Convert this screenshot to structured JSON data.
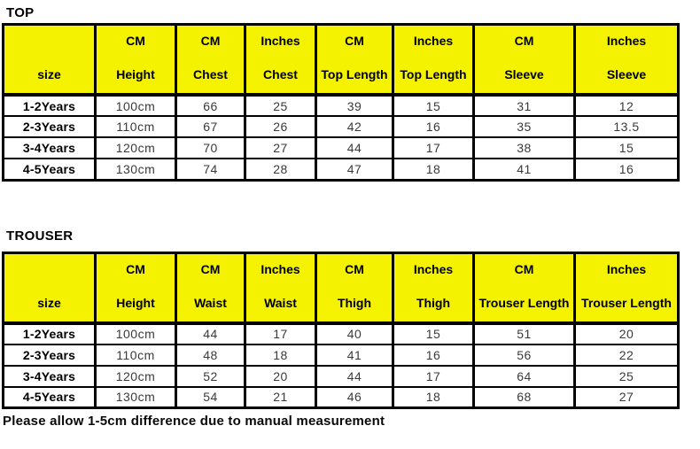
{
  "colors": {
    "header_bg": "#F5F200",
    "border": "#000000",
    "data_text": "#3a3a3a",
    "header_text": "#000000",
    "page_bg": "#ffffff"
  },
  "footnote": "Please allow 1-5cm difference due to manual measurement",
  "chart_data": [
    {
      "type": "table",
      "title": "TOP",
      "columns": [
        {
          "unit": "",
          "label": "size"
        },
        {
          "unit": "CM",
          "label": "Height"
        },
        {
          "unit": "CM",
          "label": "Chest"
        },
        {
          "unit": "Inches",
          "label": "Chest"
        },
        {
          "unit": "CM",
          "label": "Top Length"
        },
        {
          "unit": "Inches",
          "label": "Top Length"
        },
        {
          "unit": "CM",
          "label": "Sleeve"
        },
        {
          "unit": "Inches",
          "label": "Sleeve"
        }
      ],
      "rows": [
        [
          "1-2Years",
          "100cm",
          "66",
          "25",
          "39",
          "15",
          "31",
          "12"
        ],
        [
          "2-3Years",
          "110cm",
          "67",
          "26",
          "42",
          "16",
          "35",
          "13.5"
        ],
        [
          "3-4Years",
          "120cm",
          "70",
          "27",
          "44",
          "17",
          "38",
          "15"
        ],
        [
          "4-5Years",
          "130cm",
          "74",
          "28",
          "47",
          "18",
          "41",
          "16"
        ]
      ]
    },
    {
      "type": "table",
      "title": "TROUSER",
      "columns": [
        {
          "unit": "",
          "label": "size"
        },
        {
          "unit": "CM",
          "label": "Height"
        },
        {
          "unit": "CM",
          "label": "Waist"
        },
        {
          "unit": "Inches",
          "label": "Waist"
        },
        {
          "unit": "CM",
          "label": "Thigh"
        },
        {
          "unit": "Inches",
          "label": "Thigh"
        },
        {
          "unit": "CM",
          "label": "Trouser Length"
        },
        {
          "unit": "Inches",
          "label": "Trouser Length"
        }
      ],
      "rows": [
        [
          "1-2Years",
          "100cm",
          "44",
          "17",
          "40",
          "15",
          "51",
          "20"
        ],
        [
          "2-3Years",
          "110cm",
          "48",
          "18",
          "41",
          "16",
          "56",
          "22"
        ],
        [
          "3-4Years",
          "120cm",
          "52",
          "20",
          "44",
          "17",
          "64",
          "25"
        ],
        [
          "4-5Years",
          "130cm",
          "54",
          "21",
          "46",
          "18",
          "68",
          "27"
        ]
      ]
    }
  ]
}
